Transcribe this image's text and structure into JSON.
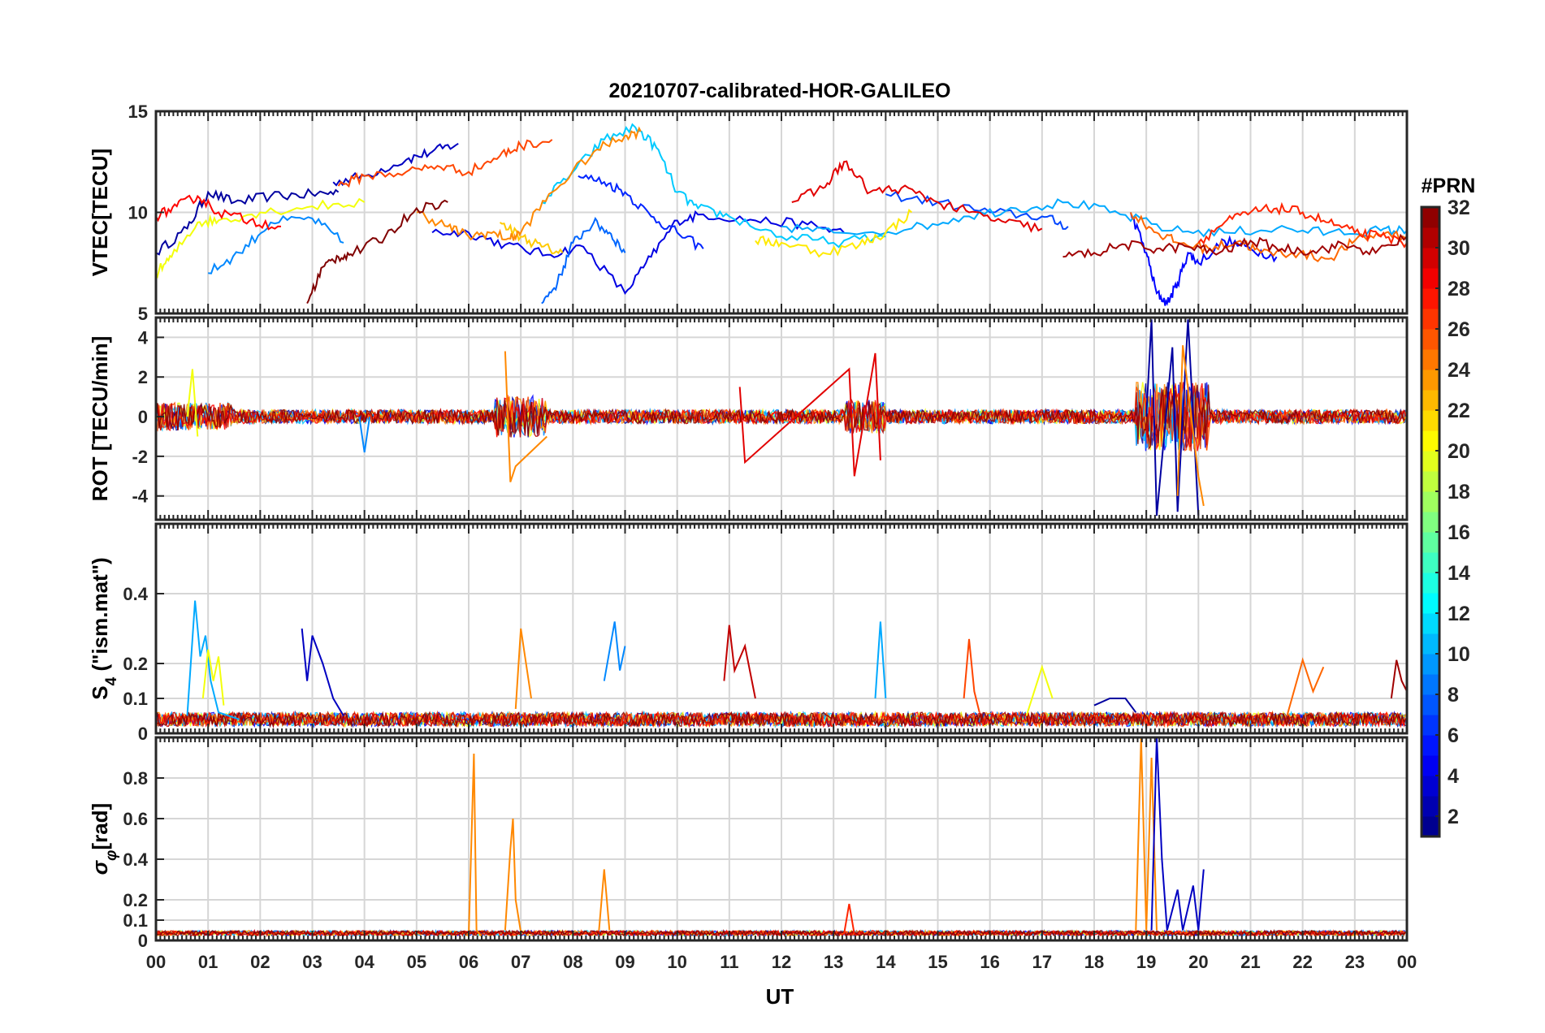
{
  "figure": {
    "title": "20210707-calibrated-HOR-GALILEO"
  },
  "colorbar": {
    "label": "#PRN",
    "range": [
      1,
      32
    ],
    "ticks": [
      "2",
      "4",
      "6",
      "8",
      "10",
      "12",
      "14",
      "16",
      "18",
      "20",
      "22",
      "24",
      "26",
      "28",
      "30",
      "32"
    ],
    "colormap": "jet"
  },
  "chart_data": [
    {
      "type": "line",
      "panel": "vtec",
      "ylabel": "VTEC[TECU]",
      "ylim": [
        5,
        15
      ],
      "yticks": [
        "5",
        "10",
        "15"
      ],
      "ytick_values": [
        5,
        10,
        15
      ],
      "xlim": [
        0,
        24
      ],
      "series": [
        {
          "prn": 2,
          "x": [
            0.0,
            0.6,
            1.0,
            1.5,
            2.2,
            3.0,
            3.5
          ],
          "y": [
            8.0,
            9.2,
            11.0,
            10.5,
            10.8,
            10.9,
            11.0
          ]
        },
        {
          "prn": 3,
          "x": [
            3.4,
            4.0,
            4.8,
            5.3,
            5.8
          ],
          "y": [
            11.5,
            11.8,
            12.6,
            13.0,
            13.4
          ]
        },
        {
          "prn": 4,
          "x": [
            5.3,
            6.0,
            6.7,
            7.5,
            8.2,
            9.0,
            9.5,
            10.0,
            10.5,
            11.5,
            12.5,
            13.2
          ],
          "y": [
            9.0,
            9.0,
            8.4,
            7.9,
            8.3,
            6.0,
            7.8,
            9.6,
            9.9,
            9.6,
            9.4,
            9.0
          ]
        },
        {
          "prn": 5,
          "x": [
            18.7,
            19.0,
            19.2,
            19.4,
            19.6,
            19.8,
            20.0,
            20.5,
            21.0,
            21.5
          ],
          "y": [
            10.0,
            8.0,
            6.0,
            5.5,
            6.5,
            8.0,
            7.5,
            8.6,
            8.2,
            7.8
          ]
        },
        {
          "prn": 6,
          "x": [
            8.1,
            8.6,
            9.0,
            9.5,
            10.0,
            10.5
          ],
          "y": [
            11.8,
            11.5,
            11.0,
            9.8,
            9.0,
            8.2
          ]
        },
        {
          "prn": 7,
          "x": [
            14.0,
            15.0,
            16.0,
            17.0,
            17.5
          ],
          "y": [
            10.9,
            10.5,
            10.0,
            9.8,
            9.3
          ]
        },
        {
          "prn": 8,
          "x": [
            7.4,
            7.7,
            8.0,
            8.4,
            8.7,
            9.0
          ],
          "y": [
            5.5,
            6.5,
            8.5,
            9.5,
            9.0,
            8.0
          ]
        },
        {
          "prn": 9,
          "x": [
            1.0,
            1.6,
            2.2,
            3.0,
            3.6
          ],
          "y": [
            7.0,
            8.0,
            9.5,
            9.7,
            8.5
          ]
        },
        {
          "prn": 10,
          "x": [
            12.0,
            13.0,
            14.5,
            15.5,
            16.5,
            17.5,
            18.5,
            19.5,
            20.5,
            21.5,
            22.5,
            23.5,
            24.0
          ],
          "y": [
            9.3,
            9.0,
            9.2,
            9.8,
            10.2,
            10.5,
            9.9,
            9.1,
            9.0,
            9.2,
            9.0,
            9.1,
            9.1
          ]
        },
        {
          "prn": 11,
          "x": [
            7.4,
            8.0,
            8.6,
            9.2,
            9.6,
            10.0,
            10.4,
            11.0,
            12.0,
            13.0,
            14.0
          ],
          "y": [
            10.5,
            12.0,
            13.6,
            14.2,
            13.2,
            11.0,
            10.2,
            9.8,
            8.8,
            8.5,
            8.8
          ]
        },
        {
          "prn": 20,
          "x": [
            0.0,
            0.3,
            0.8,
            1.2,
            2.0,
            3.0,
            4.0
          ],
          "y": [
            7.0,
            7.8,
            9.5,
            9.6,
            10.0,
            10.3,
            10.5
          ]
        },
        {
          "prn": 21,
          "x": [
            11.5,
            12.0,
            12.8,
            13.5,
            14.0,
            14.5
          ],
          "y": [
            8.6,
            8.5,
            8.0,
            8.4,
            9.0,
            10.0
          ]
        },
        {
          "prn": 22,
          "x": [
            6.6,
            7.0,
            7.4,
            7.8
          ],
          "y": [
            9.5,
            8.8,
            8.3,
            8.0
          ]
        },
        {
          "prn": 24,
          "x": [
            5.0,
            5.6,
            6.0,
            6.4,
            6.8,
            7.0,
            7.6,
            8.4,
            9.0,
            9.3
          ],
          "y": [
            10.0,
            9.3,
            8.8,
            9.0,
            8.7,
            9.0,
            11.0,
            13.0,
            13.8,
            14.0
          ]
        },
        {
          "prn": 25,
          "x": [
            18.7,
            19.2,
            19.6,
            20.2,
            20.8,
            21.2,
            21.8,
            22.5,
            23.0,
            23.6,
            24.0
          ],
          "y": [
            10.0,
            9.0,
            8.5,
            8.2,
            8.6,
            8.0,
            8.0,
            7.7,
            8.6,
            9.0,
            8.8
          ]
        },
        {
          "prn": 26,
          "x": [
            3.5,
            4.0,
            4.8,
            5.4,
            6.0,
            6.6,
            7.0,
            7.6
          ],
          "y": [
            11.3,
            11.8,
            12.0,
            12.3,
            12.0,
            12.8,
            13.3,
            13.6
          ]
        },
        {
          "prn": 27,
          "x": [
            20.0,
            20.5,
            21.0,
            21.5,
            22.0,
            22.5,
            23.0,
            23.5,
            24.0
          ],
          "y": [
            8.5,
            9.5,
            10.0,
            10.2,
            10.0,
            9.5,
            9.0,
            8.8,
            8.5
          ]
        },
        {
          "prn": 28,
          "x": [
            0.0,
            0.4,
            0.8,
            1.2,
            1.8,
            2.4
          ],
          "y": [
            9.8,
            10.3,
            10.8,
            10.0,
            9.6,
            9.3
          ]
        },
        {
          "prn": 29,
          "x": [
            12.2,
            12.8,
            13.2,
            13.7,
            14.3,
            15.0,
            15.6,
            16.3,
            17.0
          ],
          "y": [
            10.5,
            11.2,
            12.5,
            11.0,
            11.2,
            10.5,
            10.0,
            9.5,
            9.2
          ]
        },
        {
          "prn": 31,
          "x": [
            17.4,
            18.0,
            18.6,
            19.2,
            19.8,
            20.4,
            21.0,
            21.6,
            22.2,
            22.8,
            23.4,
            24.0
          ],
          "y": [
            7.8,
            8.0,
            8.4,
            8.2,
            8.3,
            8.0,
            8.6,
            8.2,
            8.1,
            8.4,
            8.0,
            8.8
          ]
        },
        {
          "prn": 32,
          "x": [
            2.9,
            3.2,
            3.5,
            3.8,
            4.4,
            5.0,
            5.6
          ],
          "y": [
            5.5,
            7.3,
            7.8,
            8.0,
            8.8,
            10.2,
            10.5
          ]
        }
      ]
    },
    {
      "type": "line",
      "panel": "rot",
      "ylabel": "ROT [TECU/min]",
      "ylim": [
        -5.2,
        5.0
      ],
      "yticks": [
        "-4",
        "-2",
        "0",
        "2",
        "4"
      ],
      "ytick_values": [
        -4,
        -2,
        0,
        2,
        4
      ],
      "xlim": [
        0,
        24
      ],
      "baseline": 0,
      "noise_window": [
        [
          0,
          1.5,
          1.0
        ],
        [
          6.5,
          7.5,
          1.5
        ],
        [
          13.2,
          14.0,
          1.2
        ],
        [
          18.8,
          20.2,
          2.5
        ]
      ],
      "series": [
        {
          "prn": 2,
          "x": [
            19.0,
            19.1,
            19.2,
            19.5,
            19.6,
            19.8,
            20.0
          ],
          "y": [
            0.0,
            4.9,
            -5.0,
            3.5,
            -4.8,
            4.9,
            -5.0
          ]
        },
        {
          "prn": 20,
          "x": [
            0.6,
            0.7,
            0.8
          ],
          "y": [
            0.0,
            2.4,
            -1.0
          ]
        },
        {
          "prn": 24,
          "x": [
            6.7,
            6.8,
            6.9,
            7.5
          ],
          "y": [
            3.3,
            -3.3,
            -2.5,
            -1.0
          ]
        },
        {
          "prn": 24,
          "x": [
            19.6,
            19.7,
            20.0,
            20.1
          ],
          "y": [
            -4.0,
            3.6,
            -3.0,
            -4.5
          ]
        },
        {
          "prn": 29,
          "x": [
            11.2,
            11.3,
            13.3,
            13.4,
            13.8,
            13.9
          ],
          "y": [
            1.5,
            -2.3,
            2.4,
            -3.0,
            3.2,
            -2.2
          ]
        },
        {
          "prn": 9,
          "x": [
            3.9,
            4.0,
            4.1
          ],
          "y": [
            0.0,
            -1.8,
            0.0
          ]
        }
      ]
    },
    {
      "type": "line",
      "panel": "s4",
      "ylabel_main": "S",
      "ylabel_sub": "4",
      "ylabel_rest": " (\"ism.mat\")",
      "ylim": [
        0,
        0.6
      ],
      "yticks": [
        "0",
        "0.1",
        "0.2",
        "0.4"
      ],
      "ytick_values": [
        0,
        0.1,
        0.2,
        0.4
      ],
      "xlim": [
        0,
        24
      ],
      "series": [
        {
          "prn": 10,
          "x": [
            0.6,
            0.75,
            0.85,
            0.95,
            1.05,
            1.2,
            1.6
          ],
          "y": [
            0.05,
            0.38,
            0.22,
            0.28,
            0.15,
            0.06,
            0.04
          ]
        },
        {
          "prn": 20,
          "x": [
            0.9,
            1.0,
            1.1,
            1.2,
            1.3
          ],
          "y": [
            0.1,
            0.24,
            0.15,
            0.22,
            0.08
          ]
        },
        {
          "prn": 3,
          "x": [
            2.8,
            2.9,
            3.0,
            3.2,
            3.4,
            3.6
          ],
          "y": [
            0.3,
            0.15,
            0.28,
            0.2,
            0.1,
            0.05
          ]
        },
        {
          "prn": 24,
          "x": [
            6.9,
            7.0,
            7.1,
            7.2
          ],
          "y": [
            0.07,
            0.3,
            0.2,
            0.1
          ]
        },
        {
          "prn": 9,
          "x": [
            8.6,
            8.8,
            8.9,
            9.0
          ],
          "y": [
            0.15,
            0.32,
            0.18,
            0.25
          ]
        },
        {
          "prn": 30,
          "x": [
            10.9,
            11.0,
            11.1,
            11.3,
            11.5
          ],
          "y": [
            0.15,
            0.31,
            0.18,
            0.25,
            0.1
          ]
        },
        {
          "prn": 10,
          "x": [
            13.8,
            13.9,
            14.0
          ],
          "y": [
            0.1,
            0.32,
            0.1
          ]
        },
        {
          "prn": 26,
          "x": [
            15.5,
            15.6,
            15.7,
            15.8
          ],
          "y": [
            0.1,
            0.27,
            0.12,
            0.06
          ]
        },
        {
          "prn": 20,
          "x": [
            16.7,
            17.0,
            17.2
          ],
          "y": [
            0.05,
            0.19,
            0.1
          ]
        },
        {
          "prn": 2,
          "x": [
            18.0,
            18.3,
            18.6,
            18.8
          ],
          "y": [
            0.08,
            0.1,
            0.1,
            0.06
          ]
        },
        {
          "prn": 25,
          "x": [
            21.7,
            22.0,
            22.2,
            22.4
          ],
          "y": [
            0.05,
            0.21,
            0.12,
            0.19
          ]
        },
        {
          "prn": 31,
          "x": [
            23.7,
            23.8,
            23.9,
            24.0
          ],
          "y": [
            0.1,
            0.21,
            0.15,
            0.12
          ]
        }
      ]
    },
    {
      "type": "line",
      "panel": "sigma_phi",
      "ylabel_main": "σ",
      "ylabel_sub": "φ",
      "ylabel_rest": "[rad]",
      "ylim": [
        0,
        1.0
      ],
      "yticks": [
        "0",
        "0.1",
        "0.2",
        "0.4",
        "0.6",
        "0.8"
      ],
      "ytick_values": [
        0,
        0.1,
        0.2,
        0.4,
        0.6,
        0.8
      ],
      "xlim": [
        0,
        24
      ],
      "series": [
        {
          "prn": 24,
          "x": [
            6.0,
            6.1,
            6.15,
            6.25
          ],
          "y": [
            0.02,
            0.92,
            0.05,
            0.02
          ]
        },
        {
          "prn": 24,
          "x": [
            6.7,
            6.8,
            6.85,
            6.9,
            7.0
          ],
          "y": [
            0.05,
            0.45,
            0.6,
            0.2,
            0.04
          ]
        },
        {
          "prn": 24,
          "x": [
            8.5,
            8.6,
            8.7
          ],
          "y": [
            0.05,
            0.35,
            0.05
          ]
        },
        {
          "prn": 27,
          "x": [
            13.2,
            13.3,
            13.4
          ],
          "y": [
            0.03,
            0.18,
            0.03
          ]
        },
        {
          "prn": 24,
          "x": [
            18.8,
            18.9,
            19.0,
            19.1,
            19.2
          ],
          "y": [
            0.05,
            1.0,
            0.05,
            0.9,
            0.05
          ]
        },
        {
          "prn": 3,
          "x": [
            19.1,
            19.2,
            19.3,
            19.4,
            19.6,
            19.7,
            19.9,
            20.0,
            20.1
          ],
          "y": [
            0.05,
            1.0,
            0.4,
            0.05,
            0.25,
            0.05,
            0.27,
            0.05,
            0.35
          ]
        }
      ]
    }
  ],
  "xaxis": {
    "label": "UT",
    "ticks": [
      "00",
      "01",
      "02",
      "03",
      "04",
      "05",
      "06",
      "07",
      "08",
      "09",
      "10",
      "11",
      "12",
      "13",
      "14",
      "15",
      "16",
      "17",
      "18",
      "19",
      "20",
      "21",
      "22",
      "23",
      "00"
    ]
  }
}
